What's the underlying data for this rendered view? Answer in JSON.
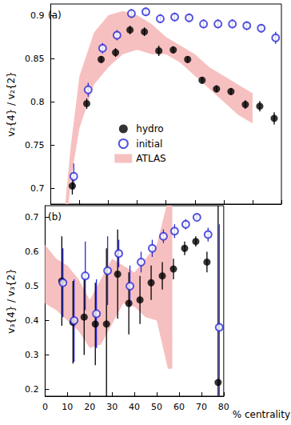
{
  "chart_data": [
    {
      "type": "scatter",
      "annotation": "(a)",
      "y_label": "v₂{4} / v₂{2}",
      "xlim": [
        0,
        80
      ],
      "xticks": [
        0,
        10,
        20,
        30,
        40,
        50,
        60,
        70,
        80
      ],
      "ylim": [
        0.682,
        0.913
      ],
      "yticks": [
        0.7,
        0.75,
        0.8,
        0.85,
        0.9
      ],
      "tick_labels": "y",
      "grid": false,
      "legend": "center",
      "series": [
        {
          "name": "hydro",
          "color": "#000000",
          "marker": "filled_circle",
          "x": [
            7.5,
            12.5,
            17.5,
            22.5,
            27.5,
            32.5,
            37.5,
            42.5,
            47.5,
            52.5,
            57.5,
            62.5,
            67.5,
            72.5,
            77.5
          ],
          "values": [
            0.703,
            0.798,
            0.849,
            0.857,
            0.883,
            0.881,
            0.859,
            0.86,
            0.849,
            0.825,
            0.815,
            0.812,
            0.797,
            0.795,
            0.781
          ],
          "errors": [
            0.01,
            0.006,
            0.004,
            0.005,
            0.005,
            0.005,
            0.006,
            0.004,
            0.004,
            0.004,
            0.004,
            0.004,
            0.005,
            0.006,
            0.007
          ]
        },
        {
          "name": "initial",
          "color": "#2b2bd6",
          "marker": "open_circle",
          "x": [
            8,
            13,
            18,
            23,
            28,
            33,
            38,
            43,
            48,
            53,
            58,
            63,
            68,
            73,
            78
          ],
          "values": [
            0.714,
            0.814,
            0.862,
            0.877,
            0.902,
            0.904,
            0.896,
            0.898,
            0.897,
            0.89,
            0.89,
            0.89,
            0.888,
            0.885,
            0.874
          ],
          "errors": [
            0.015,
            0.008,
            0.006,
            0.006,
            0.005,
            0.005,
            0.005,
            0.005,
            0.005,
            0.005,
            0.005,
            0.005,
            0.005,
            0.005,
            0.007
          ]
        },
        {
          "name": "ATLAS",
          "type": "band",
          "color": "#f7c0c0",
          "x": [
            4,
            5,
            7,
            10,
            15,
            20,
            25,
            30,
            35,
            40,
            45,
            50,
            55,
            60,
            65,
            70
          ],
          "lower": [
            0.6,
            0.64,
            0.71,
            0.77,
            0.82,
            0.84,
            0.855,
            0.86,
            0.855,
            0.855,
            0.845,
            0.83,
            0.815,
            0.8,
            0.785,
            0.775
          ],
          "upper": [
            0.64,
            0.68,
            0.75,
            0.83,
            0.88,
            0.9,
            0.905,
            0.9,
            0.89,
            0.875,
            0.865,
            0.855,
            0.84,
            0.83,
            0.82,
            0.81
          ]
        }
      ]
    },
    {
      "type": "scatter",
      "annotation": "(b)",
      "x_label": "% centrality",
      "y_label": "v₃{4} / v₃{2}",
      "xlim": [
        0,
        80
      ],
      "xticks": [
        0,
        10,
        20,
        30,
        40,
        50,
        60,
        70,
        80
      ],
      "ylim": [
        0.18,
        0.734
      ],
      "yticks": [
        0.2,
        0.3,
        0.4,
        0.5,
        0.6,
        0.7
      ],
      "grid": false,
      "series": [
        {
          "name": "hydro",
          "color": "#000000",
          "marker": "filled_circle",
          "x": [
            7.5,
            12.5,
            17.5,
            22.5,
            27.5,
            32.5,
            37.5,
            42.5,
            47.5,
            52.5,
            57.5,
            62.5,
            67.5,
            72.5,
            77.5
          ],
          "values": [
            0.515,
            0.395,
            0.41,
            0.39,
            0.39,
            0.535,
            0.45,
            0.46,
            0.51,
            0.53,
            0.55,
            0.61,
            0.63,
            0.57,
            0.22
          ],
          "errors": [
            0.13,
            0.12,
            0.11,
            0.12,
            0.22,
            0.13,
            0.09,
            0.07,
            0.05,
            0.04,
            0.03,
            0.02,
            0.015,
            0.03,
            0.6
          ]
        },
        {
          "name": "initial",
          "color": "#2b2bd6",
          "marker": "open_circle",
          "x": [
            8,
            13,
            18,
            23,
            28,
            33,
            38,
            43,
            48,
            53,
            58,
            63,
            68,
            73,
            78
          ],
          "values": [
            0.51,
            0.4,
            0.53,
            0.42,
            0.545,
            0.595,
            0.5,
            0.57,
            0.61,
            0.645,
            0.66,
            0.68,
            0.7,
            0.65,
            0.38
          ],
          "errors": [
            0.1,
            0.12,
            0.1,
            0.1,
            0.1,
            0.04,
            0.06,
            0.03,
            0.025,
            0.02,
            0.02,
            0.015,
            0.01,
            0.02,
            0.3
          ]
        },
        {
          "name": "ATLAS",
          "type": "band",
          "color": "#f7c0c0",
          "x": [
            0,
            5,
            10,
            15,
            20,
            25,
            30,
            35,
            40,
            45,
            50,
            55,
            57
          ],
          "lower": [
            0.45,
            0.43,
            0.4,
            0.37,
            0.32,
            0.33,
            0.39,
            0.45,
            0.44,
            0.41,
            0.4,
            0.26,
            0.26
          ],
          "upper": [
            0.62,
            0.58,
            0.56,
            0.52,
            0.46,
            0.52,
            0.58,
            0.56,
            0.54,
            0.58,
            0.62,
            0.75,
            0.75
          ]
        }
      ]
    }
  ]
}
